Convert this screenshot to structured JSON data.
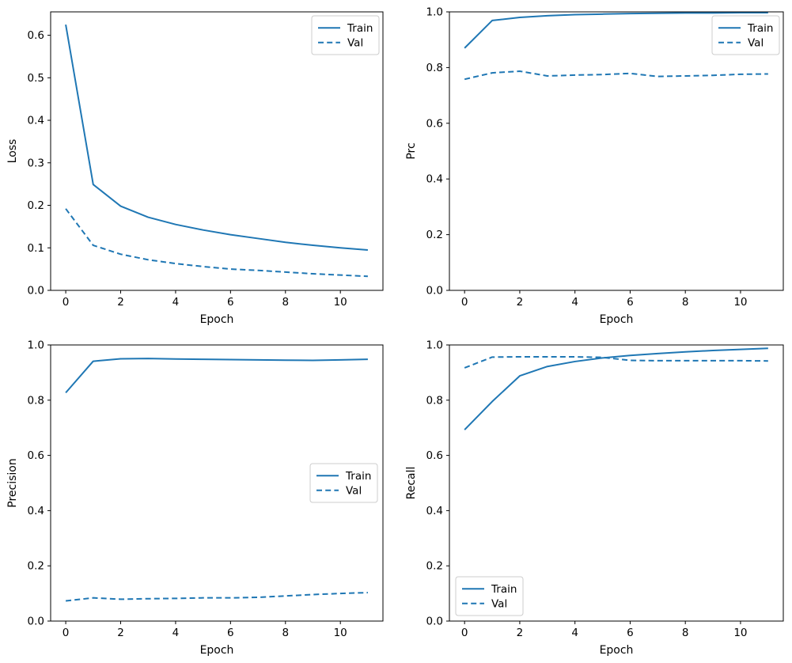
{
  "figure": {
    "background": "#ffffff",
    "line_color": "#1f77b4",
    "text_color": "#000000",
    "spine_color": "#000000",
    "legend_border_color": "#cccccc",
    "legend_background": "#ffffff"
  },
  "legend": {
    "train_label": "Train",
    "val_label": "Val"
  },
  "chart_data": [
    {
      "name": "loss",
      "type": "line",
      "title": "",
      "xlabel": "Epoch",
      "ylabel": "Loss",
      "x": [
        0,
        1,
        2,
        3,
        4,
        5,
        6,
        7,
        8,
        9,
        10,
        11
      ],
      "series": [
        {
          "name": "Train",
          "dash": "solid",
          "values": [
            0.625,
            0.249,
            0.198,
            0.172,
            0.155,
            0.142,
            0.131,
            0.122,
            0.113,
            0.106,
            0.1,
            0.095
          ]
        },
        {
          "name": "Val",
          "dash": "dashed",
          "values": [
            0.192,
            0.106,
            0.085,
            0.072,
            0.063,
            0.056,
            0.05,
            0.047,
            0.043,
            0.039,
            0.036,
            0.033
          ]
        }
      ],
      "xlim": [
        -0.55,
        11.55
      ],
      "ylim": [
        0,
        0.655
      ],
      "xticks": {
        "values": [
          0,
          2,
          4,
          6,
          8,
          10
        ],
        "labels": [
          "0",
          "2",
          "4",
          "6",
          "8",
          "10"
        ]
      },
      "yticks": {
        "values": [
          0.0,
          0.1,
          0.2,
          0.3,
          0.4,
          0.5,
          0.6
        ],
        "labels": [
          "0.0",
          "0.1",
          "0.2",
          "0.3",
          "0.4",
          "0.5",
          "0.6"
        ]
      },
      "legend_position": "upper-right",
      "grid": false
    },
    {
      "name": "prc",
      "type": "line",
      "title": "",
      "xlabel": "Epoch",
      "ylabel": "Prc",
      "x": [
        0,
        1,
        2,
        3,
        4,
        5,
        6,
        7,
        8,
        9,
        10,
        11
      ],
      "series": [
        {
          "name": "Train",
          "dash": "solid",
          "values": [
            0.87,
            0.969,
            0.98,
            0.986,
            0.99,
            0.992,
            0.994,
            0.995,
            0.996,
            0.996,
            0.997,
            0.997
          ]
        },
        {
          "name": "Val",
          "dash": "dashed",
          "values": [
            0.758,
            0.781,
            0.787,
            0.77,
            0.773,
            0.775,
            0.779,
            0.768,
            0.77,
            0.772,
            0.776,
            0.777
          ]
        }
      ],
      "xlim": [
        -0.55,
        11.55
      ],
      "ylim": [
        0,
        1.0
      ],
      "xticks": {
        "values": [
          0,
          2,
          4,
          6,
          8,
          10
        ],
        "labels": [
          "0",
          "2",
          "4",
          "6",
          "8",
          "10"
        ]
      },
      "yticks": {
        "values": [
          0.0,
          0.2,
          0.4,
          0.6,
          0.8,
          1.0
        ],
        "labels": [
          "0.0",
          "0.2",
          "0.4",
          "0.6",
          "0.8",
          "1.0"
        ]
      },
      "legend_position": "upper-right",
      "grid": false
    },
    {
      "name": "precision",
      "type": "line",
      "title": "",
      "xlabel": "Epoch",
      "ylabel": "Precision",
      "x": [
        0,
        1,
        2,
        3,
        4,
        5,
        6,
        7,
        8,
        9,
        10,
        11
      ],
      "series": [
        {
          "name": "Train",
          "dash": "solid",
          "values": [
            0.827,
            0.941,
            0.95,
            0.951,
            0.949,
            0.948,
            0.947,
            0.946,
            0.945,
            0.944,
            0.946,
            0.948
          ]
        },
        {
          "name": "Val",
          "dash": "dashed",
          "values": [
            0.073,
            0.084,
            0.079,
            0.081,
            0.082,
            0.084,
            0.084,
            0.086,
            0.091,
            0.096,
            0.1,
            0.103
          ]
        }
      ],
      "xlim": [
        -0.55,
        11.55
      ],
      "ylim": [
        0,
        1.0
      ],
      "xticks": {
        "values": [
          0,
          2,
          4,
          6,
          8,
          10
        ],
        "labels": [
          "0",
          "2",
          "4",
          "6",
          "8",
          "10"
        ]
      },
      "yticks": {
        "values": [
          0.0,
          0.2,
          0.4,
          0.6,
          0.8,
          1.0
        ],
        "labels": [
          "0.0",
          "0.2",
          "0.4",
          "0.6",
          "0.8",
          "1.0"
        ]
      },
      "legend_position": "center-right",
      "grid": false
    },
    {
      "name": "recall",
      "type": "line",
      "title": "",
      "xlabel": "Epoch",
      "ylabel": "Recall",
      "x": [
        0,
        1,
        2,
        3,
        4,
        5,
        6,
        7,
        8,
        9,
        10,
        11
      ],
      "series": [
        {
          "name": "Train",
          "dash": "solid",
          "values": [
            0.693,
            0.795,
            0.888,
            0.922,
            0.94,
            0.953,
            0.962,
            0.969,
            0.975,
            0.98,
            0.984,
            0.988
          ]
        },
        {
          "name": "Val",
          "dash": "dashed",
          "values": [
            0.917,
            0.956,
            0.957,
            0.957,
            0.957,
            0.955,
            0.944,
            0.943,
            0.943,
            0.943,
            0.943,
            0.942
          ]
        }
      ],
      "xlim": [
        -0.55,
        11.55
      ],
      "ylim": [
        0,
        1.0
      ],
      "xticks": {
        "values": [
          0,
          2,
          4,
          6,
          8,
          10
        ],
        "labels": [
          "0",
          "2",
          "4",
          "6",
          "8",
          "10"
        ]
      },
      "yticks": {
        "values": [
          0.0,
          0.2,
          0.4,
          0.6,
          0.8,
          1.0
        ],
        "labels": [
          "0.0",
          "0.2",
          "0.4",
          "0.6",
          "0.8",
          "1.0"
        ]
      },
      "legend_position": "lower-left",
      "grid": false
    }
  ]
}
